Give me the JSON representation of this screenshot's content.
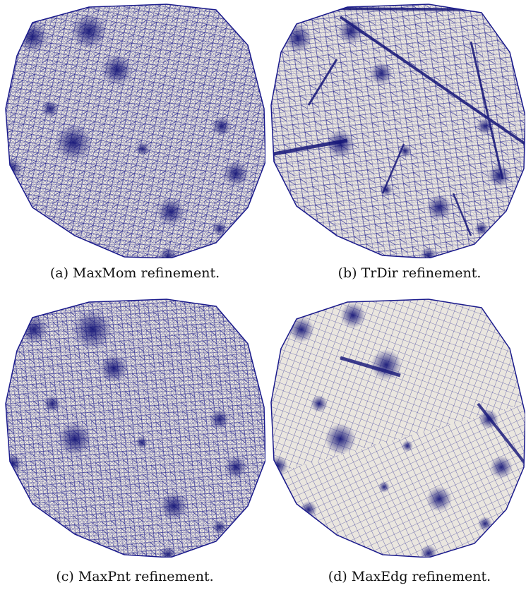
{
  "figure": {
    "panels": [
      {
        "id": "a",
        "caption": "(a) MaxMom refinement.",
        "mesh_style": "mixed"
      },
      {
        "id": "b",
        "caption": "(b) TrDir refinement.",
        "mesh_style": "streaks"
      },
      {
        "id": "c",
        "caption": "(c) MaxPnt refinement.",
        "mesh_style": "mixed"
      },
      {
        "id": "d",
        "caption": "(d) MaxEdg refinement.",
        "mesh_style": "quad"
      }
    ],
    "colors": {
      "mesh_fill": "#eae6df",
      "mesh_line": "#1a1a8c"
    }
  }
}
